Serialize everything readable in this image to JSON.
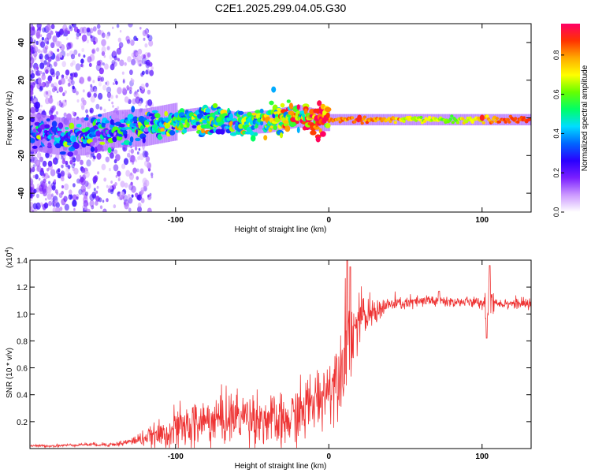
{
  "title": "C2E1.2025.299.04.05.G30",
  "colors": {
    "snr_line": "#ee3333",
    "axis": "#000000",
    "background": "#ffffff"
  },
  "colorbar": {
    "label": "Normalized spectral amplitude",
    "ticks": [
      "0.0",
      "0.2",
      "0.4",
      "0.6",
      "0.8"
    ],
    "tick_values": [
      0.0,
      0.2,
      0.4,
      0.6,
      0.8
    ],
    "range": [
      0.0,
      0.96
    ],
    "stops": [
      "#ffffff",
      "#cc99ff",
      "#7a1fff",
      "#2a00ff",
      "#0066ff",
      "#00ddff",
      "#00ff66",
      "#66ff00",
      "#ffff00",
      "#ffaa00",
      "#ff3300",
      "#ff0066"
    ]
  },
  "chart_data": [
    {
      "type": "heatmap",
      "name": "spectrogram",
      "xlabel": "Height of straight line (km)",
      "ylabel": "Frequency (Hz)",
      "xlim": [
        -195,
        132
      ],
      "ylim": [
        -50,
        50
      ],
      "xticks": [
        -100,
        0,
        100
      ],
      "xtick_labels": [
        "-100",
        "0",
        "100"
      ],
      "yticks": [
        -40,
        -20,
        0,
        20,
        40
      ],
      "ytick_labels": [
        "-40",
        "-20",
        "0",
        "20",
        "40"
      ],
      "ridge": {
        "x": [
          -190,
          -175,
          -160,
          -140,
          -120,
          -100,
          -80,
          -60,
          -40,
          -20,
          -10,
          0,
          20,
          50,
          80,
          100,
          115,
          132
        ],
        "y": [
          -8,
          -10,
          -10,
          -6,
          -5,
          -2,
          0,
          -3,
          -2,
          1,
          -1,
          -1,
          -1,
          -1,
          -1,
          -1,
          -1,
          -1
        ],
        "amplitude": [
          0.25,
          0.3,
          0.3,
          0.35,
          0.4,
          0.5,
          0.5,
          0.45,
          0.55,
          0.7,
          0.85,
          0.8,
          0.85,
          0.7,
          0.6,
          0.75,
          0.85,
          0.9
        ]
      },
      "features": [
        {
          "x": -36,
          "y": 15,
          "amplitude": 0.4
        },
        {
          "x": 100,
          "y": 0,
          "amplitude": 0.9
        },
        {
          "x": 20,
          "y": 0,
          "amplitude": 0.9
        }
      ]
    },
    {
      "type": "line",
      "name": "snr",
      "xlabel": "Height of straight line (km)",
      "ylabel": "SNR (10 * v/v)",
      "ylabel_scale": "(x10",
      "ylabel_exponent": "4",
      "xlim": [
        -195,
        132
      ],
      "ylim": [
        0,
        1.4
      ],
      "xticks": [
        -100,
        0,
        100
      ],
      "xtick_labels": [
        "-100",
        "0",
        "100"
      ],
      "yticks": [
        0.2,
        0.4,
        0.6,
        0.8,
        1.0,
        1.2,
        1.4
      ],
      "ytick_labels": [
        "0.2",
        "0.4",
        "0.6",
        "0.8",
        "1.0",
        "1.2",
        "1.4"
      ],
      "series": [
        {
          "name": "SNR",
          "x": [
            -195,
            -180,
            -160,
            -140,
            -130,
            -120,
            -110,
            -100,
            -90,
            -80,
            -70,
            -60,
            -50,
            -40,
            -30,
            -20,
            -10,
            0,
            5,
            10,
            12,
            15,
            20,
            30,
            40,
            50,
            60,
            70,
            80,
            90,
            100,
            102,
            104,
            106,
            110,
            120,
            132
          ],
          "values": [
            0.02,
            0.02,
            0.03,
            0.03,
            0.05,
            0.08,
            0.1,
            0.14,
            0.17,
            0.2,
            0.22,
            0.24,
            0.24,
            0.21,
            0.18,
            0.25,
            0.35,
            0.45,
            0.55,
            0.7,
            0.85,
            0.85,
            0.95,
            1.02,
            1.07,
            1.08,
            1.09,
            1.1,
            1.09,
            1.09,
            1.08,
            1.1,
            1.0,
            1.12,
            1.08,
            1.08,
            1.07
          ],
          "noise": [
            0.004,
            0.005,
            0.006,
            0.008,
            0.015,
            0.03,
            0.05,
            0.08,
            0.09,
            0.1,
            0.1,
            0.1,
            0.1,
            0.1,
            0.1,
            0.12,
            0.12,
            0.12,
            0.14,
            0.18,
            0.2,
            0.15,
            0.1,
            0.05,
            0.03,
            0.025,
            0.025,
            0.03,
            0.02,
            0.02,
            0.02,
            0.08,
            0.12,
            0.08,
            0.02,
            0.02,
            0.02
          ],
          "spikes": [
            {
              "x": 12,
              "y": 1.4
            },
            {
              "x": 14,
              "y": 1.35
            },
            {
              "x": 72,
              "y": 1.17
            },
            {
              "x": 103,
              "y": 0.82
            },
            {
              "x": 105,
              "y": 1.36
            }
          ]
        }
      ]
    }
  ]
}
